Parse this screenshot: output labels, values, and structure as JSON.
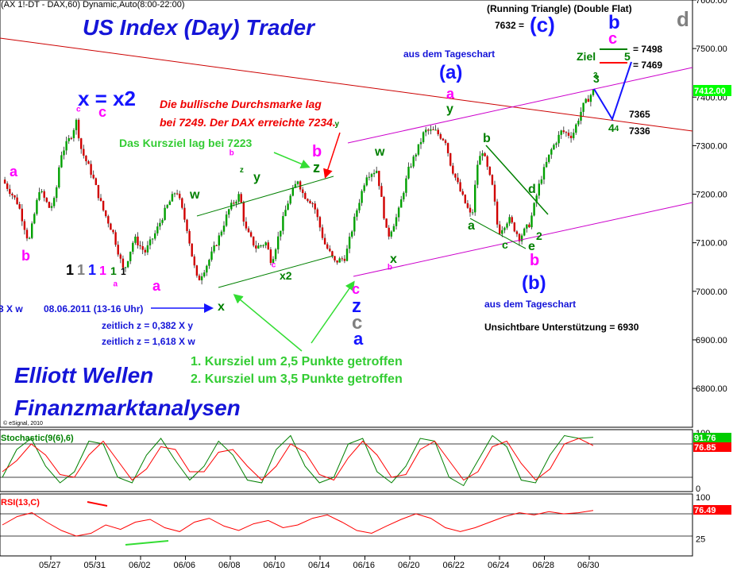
{
  "header": {
    "symbol_line": "(AX 1!-DT - DAX,60) Dynamic,Auto(8:00-22:00)",
    "pattern_line": "(Running Triangle) (Double Flat)",
    "pattern_value": "7632 =",
    "pattern_target_label": "(c)",
    "corner_letter": "d",
    "title": "US Index (Day) Trader",
    "footer_line1": "Elliott Wellen",
    "footer_line2": "Finanzmarktanalysen",
    "copyright": "© eSignal, 2010"
  },
  "annotations": {
    "bullish_note_l1": "Die bullische Durchsmarke lag",
    "bullish_note_l2": "bei 7249. Der DAX erreichte 7234.",
    "kursziel_note": "Das Kursziel lag bei 7223",
    "hit_1": "1. Kursziel um 2,5 Punkte getroffen",
    "hit_2": "2. Kursziel um 3,5 Punkte getroffen",
    "date_note": "08.06.2011 (13-16 Uhr)",
    "time_note_1": "zeitlich z = 0,382 X y",
    "time_note_2": "zeitlich z = 1,618 X w",
    "left_cut": "3 X w",
    "daily_top": "aus dem Tageschart",
    "daily_bottom": "aus dem Tageschart",
    "support_note": "Unsichtbare Unterstützung = 6930",
    "ziel": "Ziel",
    "ziel_upper": "= 7498",
    "ziel_lower": "= 7469",
    "level_7365": "7365",
    "level_7336": "7336",
    "degree_row": [
      "1",
      "1",
      "1",
      "1",
      "1",
      "1"
    ]
  },
  "wave_labels": {
    "xx2": "x = x2",
    "c": "c",
    "a": "a",
    "b": "b",
    "x": "x",
    "y": "y",
    "z": "z",
    "w": "w",
    "x2": "x2",
    "d": "d",
    "e": "e",
    "n2": "2",
    "n3": "3",
    "n4": "4",
    "n5": "5",
    "wave_a": "(a)",
    "wave_b": "(b)"
  },
  "chart_data": [
    {
      "type": "candlestick",
      "name": "DAX 60-min",
      "x_ticks": [
        "05/27",
        "05/31",
        "06/02",
        "06/06",
        "06/08",
        "06/10",
        "06/14",
        "06/16",
        "06/20",
        "06/22",
        "06/24",
        "06/28",
        "06/30"
      ],
      "y_ticks": [
        7600,
        7500,
        7400,
        7300,
        7200,
        7100,
        7000,
        6900,
        6800
      ],
      "y_tick_labels": [
        "7600.00",
        "7500.00",
        "7400.00",
        "7300.00",
        "7200.00",
        "7100.00",
        "7000.00",
        "6900.00",
        "6800.00"
      ],
      "ylim": [
        6720,
        7600
      ],
      "last_value": "7412.00",
      "close_path": [
        [
          0,
          7230
        ],
        [
          3,
          7180
        ],
        [
          5,
          7100
        ],
        [
          7,
          7210
        ],
        [
          9,
          7170
        ],
        [
          10,
          7190
        ],
        [
          11,
          7280
        ],
        [
          13,
          7320
        ],
        [
          14,
          7350
        ],
        [
          15,
          7290
        ],
        [
          17,
          7240
        ],
        [
          19,
          7170
        ],
        [
          21,
          7120
        ],
        [
          23,
          7040
        ],
        [
          25,
          7110
        ],
        [
          27,
          7080
        ],
        [
          29,
          7120
        ],
        [
          31,
          7170
        ],
        [
          33,
          7210
        ],
        [
          35,
          7130
        ],
        [
          36,
          7070
        ],
        [
          37,
          7020
        ],
        [
          39,
          7060
        ],
        [
          41,
          7110
        ],
        [
          43,
          7170
        ],
        [
          45,
          7200
        ],
        [
          46,
          7130
        ],
        [
          48,
          7090
        ],
        [
          50,
          7100
        ],
        [
          51,
          7060
        ],
        [
          52,
          7100
        ],
        [
          54,
          7180
        ],
        [
          56,
          7230
        ],
        [
          57,
          7200
        ],
        [
          59,
          7180
        ],
        [
          61,
          7100
        ],
        [
          63,
          7060
        ],
        [
          65,
          7070
        ],
        [
          67,
          7160
        ],
        [
          69,
          7240
        ],
        [
          71,
          7250
        ],
        [
          73,
          7110
        ],
        [
          75,
          7160
        ],
        [
          77,
          7250
        ],
        [
          79,
          7300
        ],
        [
          80,
          7330
        ],
        [
          82,
          7330
        ],
        [
          84,
          7310
        ],
        [
          85,
          7260
        ],
        [
          87,
          7200
        ],
        [
          89,
          7150
        ],
        [
          90,
          7260
        ],
        [
          91,
          7290
        ],
        [
          93,
          7210
        ],
        [
          94,
          7120
        ],
        [
          96,
          7150
        ],
        [
          98,
          7110
        ],
        [
          100,
          7140
        ],
        [
          102,
          7230
        ],
        [
          104,
          7290
        ],
        [
          106,
          7330
        ],
        [
          108,
          7320
        ],
        [
          110,
          7380
        ],
        [
          112,
          7412
        ]
      ],
      "wave_annotations": [
        {
          "text": "c",
          "x": 14,
          "y": 7370,
          "color": "#ff00ff"
        },
        {
          "text": "a",
          "x": 21,
          "y": 7010,
          "color": "#ff00ff"
        },
        {
          "text": "b",
          "x": 43,
          "y": 7280,
          "color": "#ff00ff"
        },
        {
          "text": "z",
          "x": 45,
          "y": 7245,
          "color": "#008000"
        },
        {
          "text": "c",
          "x": 51,
          "y": 7050,
          "color": "#ff00ff"
        },
        {
          "text": "y",
          "x": 63,
          "y": 7340,
          "color": "#008000"
        },
        {
          "text": "b",
          "x": 73,
          "y": 7045,
          "color": "#ff00ff"
        },
        {
          "text": "3",
          "x": 112,
          "y": 7440,
          "color": "#008000"
        },
        {
          "text": "4",
          "x": 116,
          "y": 7330,
          "color": "#008000"
        }
      ]
    },
    {
      "type": "line",
      "name": "Stochastic(9(6),6)",
      "title": "Stochastic(9(6),6)",
      "ylim": [
        0,
        100
      ],
      "y_ticks": [
        0,
        100
      ],
      "levels": [
        20,
        80
      ],
      "last_values": [
        "91.76",
        "76.85"
      ],
      "series": [
        {
          "name": "%K",
          "color": "#008000",
          "values": [
            20,
            70,
            90,
            40,
            10,
            30,
            85,
            80,
            20,
            10,
            60,
            90,
            50,
            15,
            40,
            85,
            60,
            15,
            10,
            70,
            95,
            40,
            10,
            20,
            80,
            90,
            30,
            10,
            40,
            90,
            85,
            20,
            5,
            50,
            95,
            75,
            15,
            10,
            60,
            95,
            90,
            92
          ]
        },
        {
          "name": "%D",
          "color": "#ff0000",
          "values": [
            30,
            50,
            80,
            60,
            25,
            20,
            60,
            85,
            50,
            15,
            35,
            75,
            70,
            30,
            30,
            65,
            70,
            40,
            15,
            40,
            80,
            65,
            25,
            15,
            55,
            85,
            60,
            20,
            25,
            70,
            85,
            50,
            15,
            30,
            75,
            85,
            45,
            15,
            35,
            80,
            90,
            77
          ]
        }
      ]
    },
    {
      "type": "line",
      "name": "RSI(13,C)",
      "title": "RSI(13,C)",
      "ylim": [
        0,
        100
      ],
      "y_ticks": [
        25,
        100
      ],
      "levels": [
        30,
        70
      ],
      "last_value": "76.49",
      "series": [
        {
          "name": "RSI",
          "color": "#ff0000",
          "values": [
            50,
            65,
            72,
            55,
            40,
            30,
            35,
            50,
            42,
            55,
            60,
            45,
            38,
            55,
            62,
            48,
            40,
            52,
            58,
            45,
            50,
            62,
            68,
            55,
            40,
            35,
            48,
            60,
            70,
            62,
            45,
            38,
            45,
            55,
            65,
            72,
            68,
            74,
            70,
            72,
            76
          ]
        }
      ]
    }
  ]
}
